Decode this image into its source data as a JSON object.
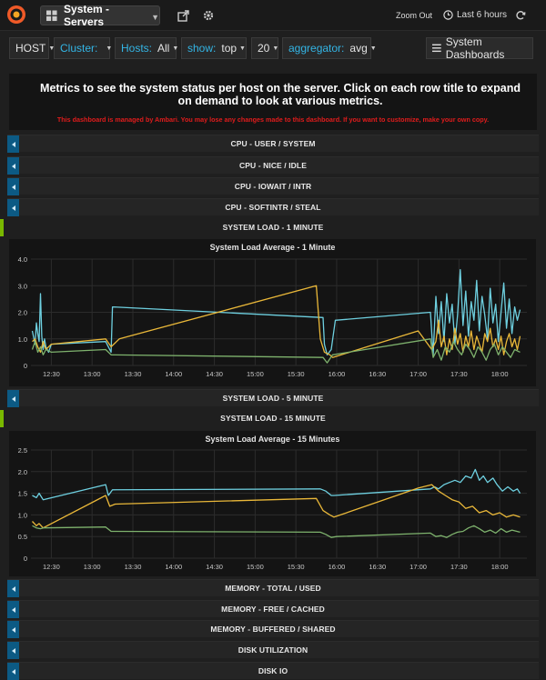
{
  "header": {
    "dashboard_title": "System - Servers",
    "zoom_out": "Zoom Out",
    "time_range": "Last 6 hours"
  },
  "variables": {
    "host": {
      "label": "HOST"
    },
    "cluster": {
      "label": "Cluster:"
    },
    "hosts": {
      "label": "Hosts:",
      "value": "All"
    },
    "show": {
      "label": "show:",
      "value": "top"
    },
    "count": {
      "value": "20"
    },
    "aggregator": {
      "label": "aggregator:",
      "value": "avg"
    },
    "system_dashboards": "System Dashboards"
  },
  "info": {
    "text": "Metrics to see the system status per host on the server. Click on each row title to expand on demand to look at various metrics.",
    "warning": "This dashboard is managed by Ambari. You may lose any changes made to this dashboard. If you want to customize, make your own copy."
  },
  "rows": {
    "cpu_user_system": "CPU - USER / SYSTEM",
    "cpu_nice_idle": "CPU - NICE / IDLE",
    "cpu_iowait_intr": "CPU - IOWAIT / INTR",
    "cpu_softintr_steal": "CPU - SOFTINTR / STEAL",
    "system_load_1": "SYSTEM LOAD - 1 MINUTE",
    "system_load_5": "SYSTEM LOAD - 5 MINUTE",
    "system_load_15": "SYSTEM LOAD - 15 MINUTE",
    "memory_total_used": "MEMORY - TOTAL / USED",
    "memory_free_cached": "MEMORY - FREE / CACHED",
    "memory_buffered_shared": "MEMORY - BUFFERED / SHARED",
    "disk_utilization": "DISK UTILIZATION",
    "disk_io": "DISK IO"
  },
  "colors": {
    "series_cyan": "#6ed0e0",
    "series_orange": "#eab839",
    "series_green": "#7eb26d",
    "row_toggle": "#0c5a84",
    "open_marker": "#79b800",
    "warning": "#e01c1c"
  },
  "chart_data": [
    {
      "type": "line",
      "title": "System Load Average - 1 Minute",
      "x_tick_labels": [
        "12:30",
        "13:00",
        "13:30",
        "14:00",
        "14:30",
        "15:00",
        "15:30",
        "16:00",
        "16:30",
        "17:00",
        "17:30",
        "18:00"
      ],
      "x_range_minutes": [
        735,
        1100
      ],
      "y_tick_labels": [
        "0",
        "1.0",
        "2.0",
        "3.0",
        "4.0"
      ],
      "ylim": [
        0,
        4
      ],
      "grid": true,
      "series": [
        {
          "color": "#6ed0e0",
          "points": [
            [
              736,
              1.3
            ],
            [
              738,
              0.8
            ],
            [
              739,
              1.6
            ],
            [
              740,
              1.2
            ],
            [
              741,
              0.9
            ],
            [
              742,
              2.7
            ],
            [
              743,
              1.1
            ],
            [
              744,
              0.6
            ],
            [
              745,
              1.0
            ],
            [
              746,
              0.7
            ],
            [
              748,
              0.5
            ],
            [
              750,
              0.8
            ],
            [
              790,
              0.9
            ],
            [
              794,
              0.5
            ],
            [
              795,
              2.2
            ],
            [
              950,
              1.8
            ],
            [
              951,
              0.8
            ],
            [
              953,
              0.4
            ],
            [
              956,
              0.6
            ],
            [
              959,
              1.7
            ],
            [
              1029,
              2.0
            ],
            [
              1031,
              0.4
            ],
            [
              1033,
              2.6
            ],
            [
              1035,
              1.2
            ],
            [
              1037,
              2.4
            ],
            [
              1039,
              0.9
            ],
            [
              1041,
              2.7
            ],
            [
              1043,
              1.6
            ],
            [
              1045,
              2.3
            ],
            [
              1047,
              0.8
            ],
            [
              1049,
              1.9
            ],
            [
              1051,
              3.6
            ],
            [
              1053,
              1.5
            ],
            [
              1055,
              2.8
            ],
            [
              1057,
              1.1
            ],
            [
              1059,
              2.4
            ],
            [
              1061,
              1.7
            ],
            [
              1063,
              3.2
            ],
            [
              1065,
              1.3
            ],
            [
              1067,
              2.6
            ],
            [
              1069,
              1.9
            ],
            [
              1071,
              1.0
            ],
            [
              1073,
              2.9
            ],
            [
              1075,
              1.6
            ],
            [
              1077,
              2.3
            ],
            [
              1079,
              0.9
            ],
            [
              1081,
              2.0
            ],
            [
              1083,
              3.1
            ],
            [
              1085,
              1.4
            ],
            [
              1087,
              2.5
            ],
            [
              1089,
              1.2
            ],
            [
              1091,
              2.2
            ],
            [
              1093,
              1.7
            ],
            [
              1095,
              2.1
            ]
          ]
        },
        {
          "color": "#eab839",
          "points": [
            [
              736,
              0.9
            ],
            [
              738,
              1.0
            ],
            [
              740,
              0.7
            ],
            [
              742,
              0.5
            ],
            [
              744,
              0.9
            ],
            [
              746,
              0.6
            ],
            [
              750,
              0.8
            ],
            [
              790,
              1.0
            ],
            [
              794,
              0.7
            ],
            [
              800,
              1.0
            ],
            [
              945,
              3.0
            ],
            [
              948,
              1.0
            ],
            [
              951,
              0.5
            ],
            [
              955,
              0.4
            ],
            [
              957,
              0.3
            ],
            [
              1020,
              1.3
            ],
            [
              1030,
              0.6
            ],
            [
              1033,
              0.9
            ],
            [
              1035,
              1.7
            ],
            [
              1037,
              0.7
            ],
            [
              1039,
              1.1
            ],
            [
              1041,
              0.4
            ],
            [
              1043,
              1.0
            ],
            [
              1045,
              0.6
            ],
            [
              1047,
              1.4
            ],
            [
              1049,
              0.8
            ],
            [
              1051,
              1.2
            ],
            [
              1053,
              0.5
            ],
            [
              1055,
              1.1
            ],
            [
              1057,
              0.7
            ],
            [
              1059,
              1.3
            ],
            [
              1061,
              0.6
            ],
            [
              1063,
              1.1
            ],
            [
              1065,
              0.8
            ],
            [
              1067,
              0.5
            ],
            [
              1069,
              1.2
            ],
            [
              1071,
              0.9
            ],
            [
              1073,
              1.4
            ],
            [
              1075,
              0.7
            ],
            [
              1077,
              1.0
            ],
            [
              1079,
              0.6
            ],
            [
              1081,
              1.1
            ],
            [
              1083,
              0.4
            ],
            [
              1085,
              0.9
            ],
            [
              1087,
              1.2
            ],
            [
              1089,
              0.7
            ],
            [
              1091,
              1.0
            ],
            [
              1093,
              0.6
            ],
            [
              1095,
              1.1
            ]
          ]
        },
        {
          "color": "#7eb26d",
          "points": [
            [
              736,
              0.6
            ],
            [
              738,
              0.9
            ],
            [
              740,
              0.5
            ],
            [
              742,
              0.7
            ],
            [
              744,
              0.4
            ],
            [
              746,
              0.6
            ],
            [
              750,
              0.5
            ],
            [
              790,
              0.6
            ],
            [
              794,
              0.4
            ],
            [
              950,
              0.3
            ],
            [
              953,
              0.1
            ],
            [
              957,
              0.4
            ],
            [
              1029,
              1.0
            ],
            [
              1031,
              0.3
            ],
            [
              1034,
              0.6
            ],
            [
              1037,
              0.2
            ],
            [
              1040,
              0.7
            ],
            [
              1043,
              0.5
            ],
            [
              1046,
              0.9
            ],
            [
              1049,
              0.6
            ],
            [
              1052,
              0.4
            ],
            [
              1055,
              0.8
            ],
            [
              1058,
              0.6
            ],
            [
              1061,
              0.3
            ],
            [
              1064,
              0.7
            ],
            [
              1067,
              0.5
            ],
            [
              1070,
              0.2
            ],
            [
              1073,
              0.6
            ],
            [
              1076,
              0.8
            ],
            [
              1079,
              0.4
            ],
            [
              1082,
              0.7
            ],
            [
              1085,
              0.5
            ],
            [
              1088,
              0.3
            ],
            [
              1091,
              0.6
            ],
            [
              1095,
              0.5
            ]
          ]
        }
      ]
    },
    {
      "type": "line",
      "title": "System Load Average - 15 Minutes",
      "x_tick_labels": [
        "12:30",
        "13:00",
        "13:30",
        "14:00",
        "14:30",
        "15:00",
        "15:30",
        "16:00",
        "16:30",
        "17:00",
        "17:30",
        "18:00"
      ],
      "x_range_minutes": [
        735,
        1100
      ],
      "y_tick_labels": [
        "0",
        "0.5",
        "1.0",
        "1.5",
        "2.0",
        "2.5"
      ],
      "ylim": [
        0,
        2.5
      ],
      "grid": true,
      "series": [
        {
          "color": "#6ed0e0",
          "points": [
            [
              736,
              1.45
            ],
            [
              739,
              1.4
            ],
            [
              741,
              1.5
            ],
            [
              744,
              1.35
            ],
            [
              790,
              1.7
            ],
            [
              792,
              1.45
            ],
            [
              795,
              1.58
            ],
            [
              948,
              1.6
            ],
            [
              952,
              1.55
            ],
            [
              956,
              1.45
            ],
            [
              958,
              1.45
            ],
            [
              1029,
              1.6
            ],
            [
              1032,
              1.65
            ],
            [
              1035,
              1.6
            ],
            [
              1039,
              1.7
            ],
            [
              1043,
              1.75
            ],
            [
              1047,
              1.8
            ],
            [
              1051,
              1.75
            ],
            [
              1055,
              1.9
            ],
            [
              1059,
              1.85
            ],
            [
              1062,
              2.05
            ],
            [
              1065,
              1.8
            ],
            [
              1068,
              1.9
            ],
            [
              1071,
              1.75
            ],
            [
              1075,
              1.85
            ],
            [
              1078,
              1.7
            ],
            [
              1082,
              1.55
            ],
            [
              1086,
              1.65
            ],
            [
              1090,
              1.55
            ],
            [
              1093,
              1.6
            ],
            [
              1095,
              1.5
            ]
          ]
        },
        {
          "color": "#eab839",
          "points": [
            [
              736,
              0.85
            ],
            [
              739,
              0.75
            ],
            [
              741,
              0.8
            ],
            [
              744,
              0.7
            ],
            [
              790,
              1.45
            ],
            [
              793,
              1.2
            ],
            [
              797,
              1.25
            ],
            [
              945,
              1.38
            ],
            [
              950,
              1.1
            ],
            [
              955,
              1.0
            ],
            [
              958,
              0.95
            ],
            [
              1020,
              1.62
            ],
            [
              1030,
              1.7
            ],
            [
              1035,
              1.55
            ],
            [
              1040,
              1.45
            ],
            [
              1045,
              1.35
            ],
            [
              1050,
              1.3
            ],
            [
              1055,
              1.15
            ],
            [
              1060,
              1.2
            ],
            [
              1065,
              1.05
            ],
            [
              1070,
              1.1
            ],
            [
              1075,
              1.0
            ],
            [
              1080,
              1.05
            ],
            [
              1085,
              0.95
            ],
            [
              1090,
              1.0
            ],
            [
              1095,
              0.95
            ]
          ]
        },
        {
          "color": "#7eb26d",
          "points": [
            [
              736,
              0.75
            ],
            [
              739,
              0.7
            ],
            [
              742,
              0.68
            ],
            [
              744,
              0.7
            ],
            [
              790,
              0.72
            ],
            [
              794,
              0.62
            ],
            [
              948,
              0.6
            ],
            [
              952,
              0.55
            ],
            [
              956,
              0.48
            ],
            [
              960,
              0.5
            ],
            [
              1029,
              0.58
            ],
            [
              1033,
              0.5
            ],
            [
              1037,
              0.52
            ],
            [
              1041,
              0.48
            ],
            [
              1045,
              0.55
            ],
            [
              1049,
              0.6
            ],
            [
              1053,
              0.62
            ],
            [
              1057,
              0.7
            ],
            [
              1061,
              0.75
            ],
            [
              1065,
              0.68
            ],
            [
              1069,
              0.6
            ],
            [
              1073,
              0.65
            ],
            [
              1077,
              0.58
            ],
            [
              1081,
              0.68
            ],
            [
              1085,
              0.6
            ],
            [
              1089,
              0.65
            ],
            [
              1095,
              0.6
            ]
          ]
        }
      ]
    }
  ]
}
